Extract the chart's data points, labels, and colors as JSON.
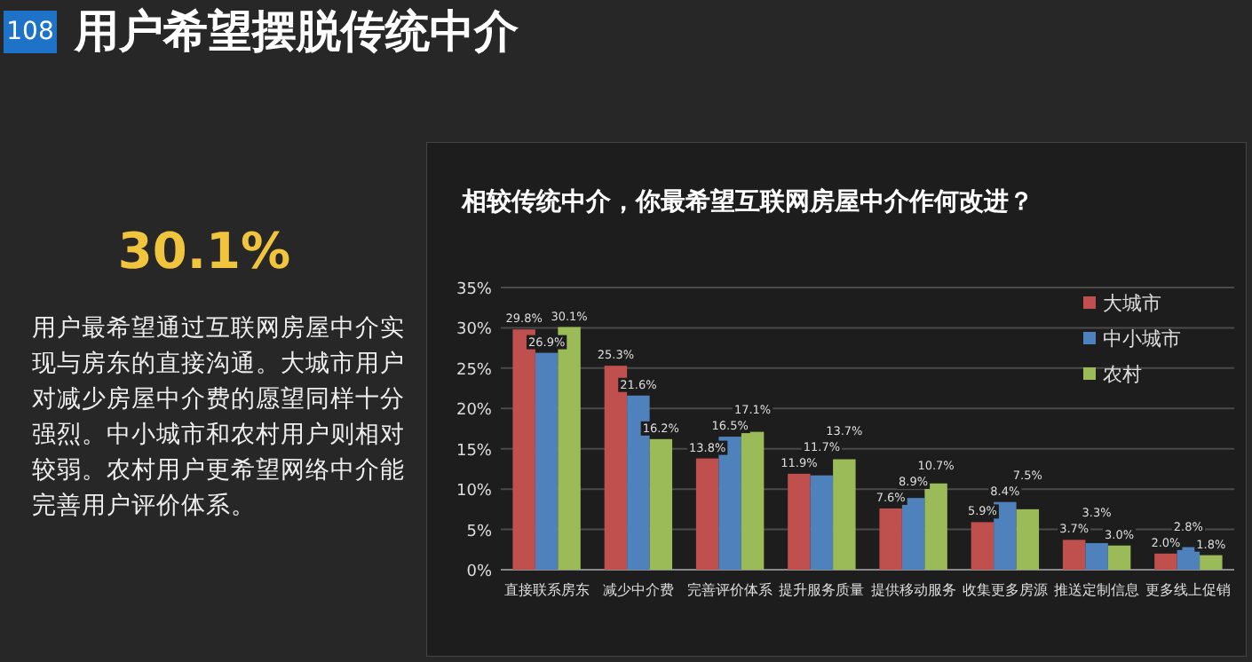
{
  "chart_data": {
    "type": "bar",
    "title": "相较传统中介，你最希望互联网房屋中介作何改进？",
    "categories": [
      "直接联系房东",
      "减少中介费",
      "完善评价体系",
      "提升服务质量",
      "提供移动服务",
      "收集更多房源",
      "推送定制信息",
      "更多线上促销"
    ],
    "series": [
      {
        "name": "大城市",
        "color": "#c0504d",
        "values": [
          29.8,
          25.3,
          13.8,
          11.9,
          7.6,
          5.9,
          3.7,
          2.0
        ],
        "value_labels": [
          "29.8%",
          "25.3%",
          "13.8%",
          "11.9%",
          "7.6%",
          "5.9%",
          "3.7%",
          "2.0%"
        ]
      },
      {
        "name": "中小城市",
        "color": "#4f81bd",
        "values": [
          26.9,
          21.6,
          16.5,
          11.7,
          8.9,
          8.4,
          3.3,
          2.8
        ],
        "value_labels": [
          "26.9%",
          "21.6%",
          "16.5%",
          "11.7%",
          "8.9%",
          "8.4%",
          "3.3%",
          "2.8%"
        ]
      },
      {
        "name": "农村",
        "color": "#9bbb59",
        "values": [
          30.1,
          16.2,
          17.1,
          13.7,
          10.7,
          7.5,
          3.0,
          1.8
        ],
        "value_labels": [
          "30.1%",
          "16.2%",
          "17.1%",
          "13.7%",
          "10.7%",
          "7.5%",
          "3.0%",
          "1.8%"
        ]
      }
    ],
    "ylim": [
      0,
      35
    ],
    "yticks": [
      {
        "value": 0,
        "label": "0%"
      },
      {
        "value": 5,
        "label": "5%"
      },
      {
        "value": 10,
        "label": "10%"
      },
      {
        "value": 15,
        "label": "15%"
      },
      {
        "value": 20,
        "label": "20%"
      },
      {
        "value": 25,
        "label": "25%"
      },
      {
        "value": 30,
        "label": "30%"
      },
      {
        "value": 35,
        "label": "35%"
      }
    ],
    "grid": "y",
    "legend": "top right",
    "annotations": [
      "108",
      "用户希望摆脱传统中介",
      "30.1%",
      "用户最希望通过互联网房屋中介实现与房东的直接沟通。大城市用户对减少房屋中介费的愿望同样十分强烈。中小城市和农村用户则相对较弱。农村用户更希望网络中介能完善用户评价体系。"
    ]
  }
}
